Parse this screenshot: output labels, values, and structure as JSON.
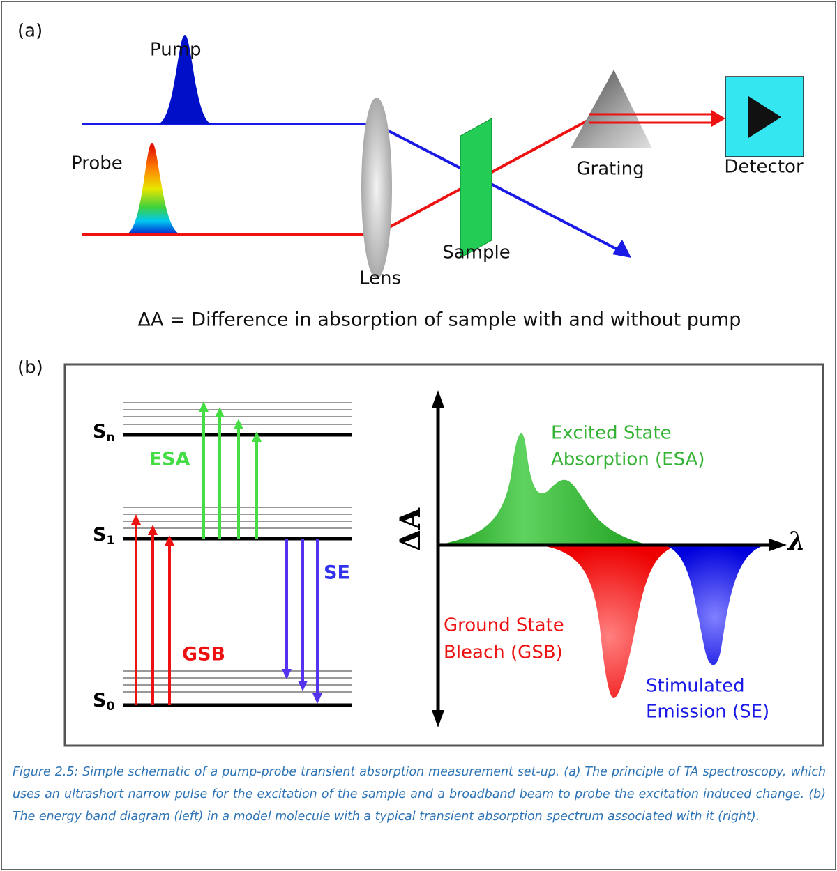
{
  "panel_a": {
    "label": "(a)",
    "pump": "Pump",
    "probe": "Probe",
    "lens": "Lens",
    "sample": "Sample",
    "grating": "Grating",
    "detector": "Detector",
    "equation": "ΔA = Difference in absorption of sample with and without pump"
  },
  "panel_b": {
    "label": "(b)",
    "levels": [
      {
        "main": "S",
        "sub": "n"
      },
      {
        "main": "S",
        "sub": "1"
      },
      {
        "main": "S",
        "sub": "0"
      }
    ],
    "transitions": {
      "esa": "ESA",
      "se": "SE",
      "gsb": "GSB"
    },
    "axis": {
      "y": "ΔA",
      "x": "λ"
    },
    "spectrum_labels": {
      "esa": [
        "Excited State",
        "Absorption (ESA)"
      ],
      "gsb": [
        "Ground State",
        "Bleach (GSB)"
      ],
      "se": [
        "Stimulated",
        "Emission (SE)"
      ]
    }
  },
  "caption": "Figure 2.5: Simple schematic of a pump-probe transient absorption measurement set-up. (a) The principle of TA spectroscopy, which uses an ultrashort narrow pulse for the excitation of the sample and a broadband beam to probe the excitation induced change. (b) The energy band diagram (left) in a model molecule with a typical transient absorption spectrum associated with it (right)."
}
